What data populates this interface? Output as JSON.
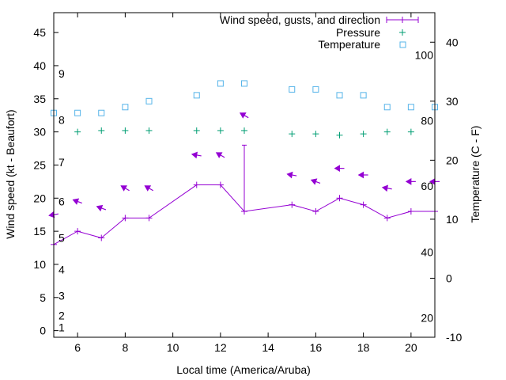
{
  "chart_data": {
    "type": "line",
    "xlabel": "Local time (America/Aruba)",
    "ylabel": "Wind speed (kt - Beaufort)",
    "y2label": "Temperature (C - F)",
    "xlim": [
      5,
      21
    ],
    "ylim": [
      -1,
      48
    ],
    "y2lim": [
      -10,
      45
    ],
    "xticks": [
      "6",
      "8",
      "10",
      "12",
      "14",
      "16",
      "18",
      "20"
    ],
    "xtick_values": [
      6,
      8,
      10,
      12,
      14,
      16,
      18,
      20
    ],
    "yticks": [
      "0",
      "5",
      "10",
      "15",
      "20",
      "25",
      "30",
      "35",
      "40",
      "45"
    ],
    "ytick_values": [
      0,
      5,
      10,
      15,
      20,
      25,
      30,
      35,
      40,
      45
    ],
    "y2ticks": [
      "-10",
      "0",
      "10",
      "20",
      "30",
      "40"
    ],
    "y2tick_values": [
      -10,
      0,
      10,
      20,
      30,
      40
    ],
    "beaufort_labels": [
      {
        "text": "1",
        "y": 0.5
      },
      {
        "text": "2",
        "y": 2.3
      },
      {
        "text": "3",
        "y": 5.3
      },
      {
        "text": "4",
        "y": 9.2
      },
      {
        "text": "5",
        "y": 14.0
      },
      {
        "text": "6",
        "y": 19.5
      },
      {
        "text": "7",
        "y": 25.4
      },
      {
        "text": "8",
        "y": 31.8
      },
      {
        "text": "9",
        "y": 38.8
      }
    ],
    "fahrenheit_labels": [
      {
        "text": "20",
        "c": -6.7
      },
      {
        "text": "40",
        "c": 4.4
      },
      {
        "text": "60",
        "c": 15.6
      },
      {
        "text": "80",
        "c": 26.7
      },
      {
        "text": "100",
        "c": 37.8
      }
    ],
    "series": [
      {
        "name": "Wind speed, gusts, and direction",
        "color": "#9400d3",
        "x": [
          5,
          6,
          7,
          8,
          9,
          11,
          12,
          13,
          15,
          16,
          17,
          18,
          19,
          20,
          21
        ],
        "values": [
          13,
          15,
          14,
          17,
          17,
          22,
          22,
          18,
          19,
          18,
          20,
          19,
          17,
          18,
          18
        ],
        "gusts": [
          {
            "x": 13,
            "value": 28
          }
        ]
      },
      {
        "name": "Pressure",
        "color": "#009e73",
        "x": [
          6,
          7,
          8,
          9,
          11,
          12,
          13,
          15,
          16,
          17,
          18,
          19,
          20
        ],
        "values": [
          30,
          30.2,
          30.2,
          30.2,
          30.2,
          30.2,
          30.2,
          29.7,
          29.7,
          29.5,
          29.7,
          30,
          30
        ]
      },
      {
        "name": "Temperature",
        "color": "#56b4e9",
        "x": [
          5,
          6,
          7,
          8,
          9,
          11,
          12,
          13,
          15,
          16,
          17,
          18,
          19,
          20,
          21
        ],
        "values": [
          28,
          28,
          28,
          29,
          30,
          31,
          33,
          33,
          32,
          32,
          31,
          31,
          29,
          29,
          29
        ]
      }
    ],
    "direction_arrows": [
      {
        "x": 5,
        "y": 17.5,
        "dir": 80
      },
      {
        "x": 6,
        "y": 19.5,
        "dir": 110
      },
      {
        "x": 7,
        "y": 18.5,
        "dir": 110
      },
      {
        "x": 8,
        "y": 21.5,
        "dir": 120
      },
      {
        "x": 9,
        "y": 21.5,
        "dir": 120
      },
      {
        "x": 11,
        "y": 26.5,
        "dir": 100
      },
      {
        "x": 12,
        "y": 26.5,
        "dir": 120
      },
      {
        "x": 13,
        "y": 32.5,
        "dir": 120
      },
      {
        "x": 15,
        "y": 23.5,
        "dir": 100
      },
      {
        "x": 16,
        "y": 22.5,
        "dir": 110
      },
      {
        "x": 17,
        "y": 24.5,
        "dir": 90
      },
      {
        "x": 18,
        "y": 23.5,
        "dir": 90
      },
      {
        "x": 19,
        "y": 21.5,
        "dir": 100
      },
      {
        "x": 20,
        "y": 22.5,
        "dir": 90
      },
      {
        "x": 21,
        "y": 22.5,
        "dir": 90
      }
    ]
  }
}
